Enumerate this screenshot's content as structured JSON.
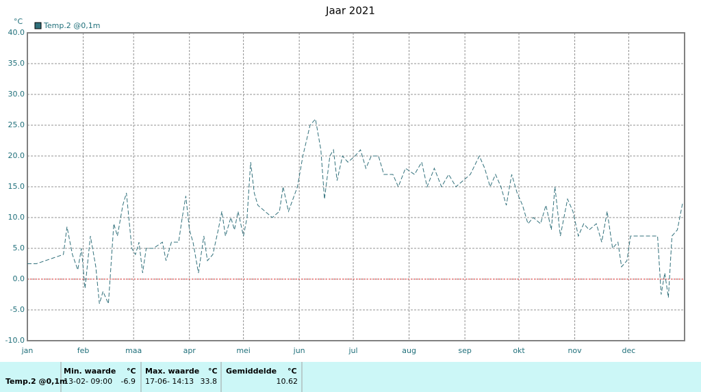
{
  "chart_data": {
    "type": "line",
    "title": "Jaar 2021",
    "y_unit": "°C",
    "x": [
      0,
      5,
      10,
      15,
      20,
      22,
      25,
      28,
      30,
      32,
      35,
      38,
      40,
      42,
      45,
      48,
      50,
      53,
      55,
      58,
      60,
      62,
      64,
      66,
      70,
      75,
      77,
      80,
      84,
      86,
      88,
      90,
      92,
      95,
      98,
      100,
      103,
      106,
      108,
      110,
      113,
      115,
      117,
      120,
      122,
      124,
      126,
      128,
      132,
      136,
      140,
      142,
      145,
      150,
      153,
      157,
      160,
      163,
      165,
      168,
      170,
      172,
      175,
      178,
      182,
      185,
      188,
      191,
      195,
      198,
      203,
      206,
      210,
      215,
      219,
      222,
      226,
      230,
      234,
      238,
      242,
      246,
      251,
      254,
      257,
      260,
      263,
      266,
      269,
      272,
      275,
      278,
      281,
      285,
      288,
      291,
      293,
      296,
      300,
      303,
      306,
      309,
      312,
      316,
      319,
      322,
      325,
      328,
      330,
      333,
      335,
      345,
      350,
      352,
      354,
      356,
      358,
      361,
      364
    ],
    "series": [
      {
        "name": "Temp.2 @0,1m",
        "color": "#2f6f7a",
        "values": [
          2.5,
          2.5,
          3,
          3.5,
          4,
          8.5,
          4,
          1.5,
          5,
          -1.5,
          7,
          2,
          -4,
          -2,
          -4,
          9,
          7,
          12,
          14,
          5,
          4,
          6,
          1,
          5,
          5,
          6,
          3,
          6,
          6,
          10,
          13.5,
          8,
          6,
          1,
          7,
          3,
          4,
          8,
          11,
          7,
          10,
          8,
          11,
          7,
          10,
          19,
          14,
          12,
          11,
          10,
          11,
          15,
          11,
          15,
          20,
          25,
          26,
          21,
          13,
          20,
          21,
          16,
          20,
          19,
          20,
          21,
          18,
          20,
          20,
          17,
          17,
          15,
          18,
          17,
          19,
          15,
          18,
          15,
          17,
          15,
          16,
          17,
          20,
          18,
          15,
          17,
          15,
          12,
          17,
          14,
          12,
          9,
          10,
          9,
          12,
          8,
          15,
          7,
          13,
          11,
          7,
          9,
          8,
          9,
          6,
          11,
          5,
          6,
          2,
          3,
          7,
          7,
          7,
          -2.5,
          1,
          -3,
          7,
          8,
          12.5
        ]
      }
    ],
    "xlim": [
      0,
      365
    ],
    "xticks": [
      {
        "value": 0,
        "label": "jan"
      },
      {
        "value": 31,
        "label": "feb"
      },
      {
        "value": 59,
        "label": "maa"
      },
      {
        "value": 90,
        "label": "apr"
      },
      {
        "value": 120,
        "label": "mei"
      },
      {
        "value": 151,
        "label": "jun"
      },
      {
        "value": 181,
        "label": "jul"
      },
      {
        "value": 212,
        "label": "aug"
      },
      {
        "value": 243,
        "label": "sep"
      },
      {
        "value": 273,
        "label": "okt"
      },
      {
        "value": 304,
        "label": "nov"
      },
      {
        "value": 334,
        "label": "dec"
      }
    ],
    "ylim": [
      -10,
      40
    ],
    "yticks": [
      {
        "value": -10,
        "label": "-10.0"
      },
      {
        "value": -5,
        "label": "-5.0"
      },
      {
        "value": 0,
        "label": "0.0"
      },
      {
        "value": 5,
        "label": "5.0"
      },
      {
        "value": 10,
        "label": "10.0"
      },
      {
        "value": 15,
        "label": "15.0"
      },
      {
        "value": 20,
        "label": "20.0"
      },
      {
        "value": 25,
        "label": "25.0"
      },
      {
        "value": 30,
        "label": "30.0"
      },
      {
        "value": 35,
        "label": "35.0"
      },
      {
        "value": 40,
        "label": "40.0"
      }
    ],
    "grid": true,
    "legend": "top-left"
  },
  "table": {
    "headers": [
      "Min. waarde",
      "°C",
      "Max. waarde",
      "°C",
      "Gemiddelde",
      "°C"
    ],
    "rows": [
      [
        "Temp.2 @0,1m",
        "13-02- 09:00",
        "-6.9",
        "17-06- 14:13",
        "33.8",
        "10.62"
      ]
    ]
  }
}
